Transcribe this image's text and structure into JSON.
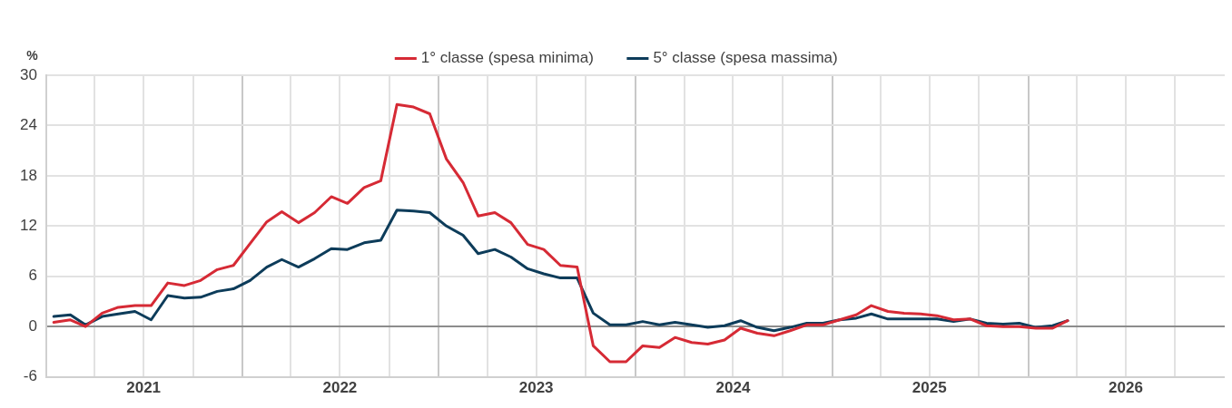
{
  "chart_data": {
    "type": "line",
    "ylabel": "%",
    "legend": "top",
    "grid": true,
    "line_style": "solid",
    "marker": "none",
    "x": [
      "2021-01-15",
      "2021-02-15",
      "2021-03-15",
      "2021-04-15",
      "2021-05-15",
      "2021-06-15",
      "2021-07-15",
      "2021-08-15",
      "2021-09-15",
      "2021-10-15",
      "2021-11-15",
      "2021-12-15",
      "2022-01-15",
      "2022-02-15",
      "2022-03-15",
      "2022-04-15",
      "2022-05-15",
      "2022-06-15",
      "2022-07-15",
      "2022-08-15",
      "2022-09-15",
      "2022-10-15",
      "2022-11-15",
      "2022-12-15",
      "2023-01-15",
      "2023-02-15",
      "2023-03-15",
      "2023-04-15",
      "2023-05-15",
      "2023-06-15",
      "2023-07-15",
      "2023-08-15",
      "2023-09-15",
      "2023-10-15",
      "2023-11-15",
      "2023-12-15",
      "2024-01-15",
      "2024-02-15",
      "2024-03-15",
      "2024-04-15",
      "2024-05-15",
      "2024-06-15",
      "2024-07-15",
      "2024-08-15",
      "2024-09-15",
      "2024-10-15",
      "2024-11-15",
      "2024-12-15",
      "2025-01-15",
      "2025-02-15",
      "2025-03-15",
      "2025-04-15",
      "2025-05-15",
      "2025-06-15",
      "2025-07-15",
      "2025-08-15",
      "2025-09-15",
      "2025-10-15",
      "2025-11-15",
      "2025-12-15",
      "2026-01-15",
      "2026-02-15",
      "2026-03-15"
    ],
    "series": [
      {
        "name": "1° classe (spesa minima)",
        "color": "#d62a35",
        "values": [
          0.5,
          0.8,
          0,
          1.6,
          2.3,
          2.5,
          2.5,
          5.2,
          4.9,
          5.5,
          6.8,
          7.3,
          9.9,
          12.5,
          13.7,
          12.4,
          13.6,
          15.5,
          14.7,
          16.6,
          17.4,
          26.5,
          26.2,
          25.4,
          20.0,
          17.2,
          13.2,
          13.6,
          12.4,
          9.8,
          9.2,
          7.3,
          7.1,
          -2.3,
          -4.2,
          -4.2,
          -2.3,
          -2.5,
          -1.3,
          -1.9,
          -2.1,
          -1.6,
          -0.2,
          -0.8,
          -1.1,
          -0.5,
          0.2,
          0.2,
          0.8,
          1.4,
          2.5,
          1.8,
          1.6,
          1.5,
          1.3,
          0.8,
          0.9,
          0.1,
          0,
          0,
          -0.2,
          -0.2,
          0.7
        ]
      },
      {
        "name": "5° classe (spesa massima)",
        "color": "#0d3c5a",
        "values": [
          1.2,
          1.4,
          0.2,
          1.2,
          1.5,
          1.8,
          0.8,
          3.7,
          3.4,
          3.5,
          4.2,
          4.5,
          5.5,
          7.1,
          8.0,
          7.1,
          8.1,
          9.3,
          9.2,
          10.0,
          10.3,
          13.9,
          13.8,
          13.6,
          12.0,
          10.9,
          8.7,
          9.2,
          8.3,
          6.9,
          6.3,
          5.8,
          5.8,
          1.6,
          0.2,
          0.2,
          0.6,
          0.2,
          0.5,
          0.2,
          -0.1,
          0.1,
          0.7,
          -0.1,
          -0.5,
          -0.1,
          0.4,
          0.4,
          0.8,
          1.0,
          1.5,
          0.9,
          0.9,
          0.9,
          0.9,
          0.6,
          0.9,
          0.4,
          0.3,
          0.4,
          -0.1,
          0.1,
          0.7
        ]
      }
    ],
    "ylim": [
      -6,
      30
    ],
    "yticks": [
      -6,
      0,
      6,
      12,
      18,
      24,
      30
    ],
    "xlim": [
      "2021-01-01",
      "2027-01-01"
    ],
    "xticks": [
      {
        "value": "2021-01-01",
        "label": null
      },
      {
        "value": "2021-04-01",
        "label": null
      },
      {
        "value": "2021-07-01",
        "label": "2021"
      },
      {
        "value": "2021-10-01",
        "label": null
      },
      {
        "value": "2022-01-01",
        "label": null
      },
      {
        "value": "2022-04-01",
        "label": null
      },
      {
        "value": "2022-07-01",
        "label": "2022"
      },
      {
        "value": "2022-10-01",
        "label": null
      },
      {
        "value": "2023-01-01",
        "label": null
      },
      {
        "value": "2023-04-01",
        "label": null
      },
      {
        "value": "2023-07-01",
        "label": "2023"
      },
      {
        "value": "2023-10-01",
        "label": null
      },
      {
        "value": "2024-01-01",
        "label": null
      },
      {
        "value": "2024-04-01",
        "label": null
      },
      {
        "value": "2024-07-01",
        "label": "2024"
      },
      {
        "value": "2024-10-01",
        "label": null
      },
      {
        "value": "2025-01-01",
        "label": null
      },
      {
        "value": "2025-04-01",
        "label": null
      },
      {
        "value": "2025-07-01",
        "label": "2025"
      },
      {
        "value": "2025-10-01",
        "label": null
      },
      {
        "value": "2026-01-01",
        "label": null
      },
      {
        "value": "2026-04-01",
        "label": null
      },
      {
        "value": "2026-07-01",
        "label": "2026"
      },
      {
        "value": "2026-10-01",
        "label": null
      }
    ]
  }
}
